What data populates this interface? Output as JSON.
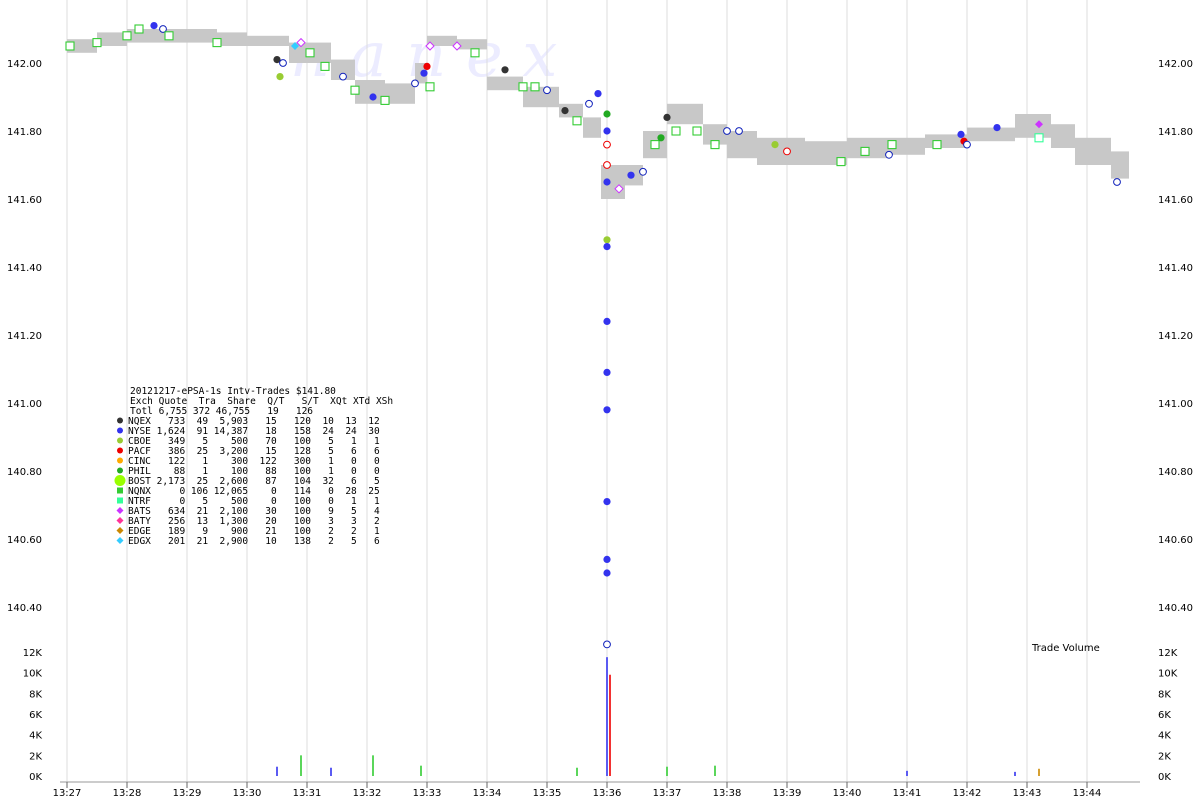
{
  "chart_data": {
    "type": "scatter",
    "title": "20121217-ePSA-1s Intv-Trades $141.80",
    "watermark": "n a n e x",
    "x_time_labels": [
      "13:27",
      "13:28",
      "13:29",
      "13:30",
      "13:31",
      "13:32",
      "13:33",
      "13:34",
      "13:35",
      "13:36",
      "13:37",
      "13:38",
      "13:39",
      "13:40",
      "13:41",
      "13:42",
      "13:43",
      "13:44"
    ],
    "price_axis": {
      "ticks": [
        "142.00",
        "141.80",
        "141.60",
        "141.40",
        "141.20",
        "141.00",
        "140.80",
        "140.60",
        "140.40"
      ],
      "range": [
        140.3,
        142.13
      ]
    },
    "volume_axis": {
      "label": "Trade Volume",
      "ticks": [
        "12K",
        "10K",
        "8K",
        "6K",
        "4K",
        "2K",
        "0K"
      ],
      "range": [
        0,
        12000
      ]
    },
    "colors": {
      "NQEX": "#333333",
      "NYSE": "#3333ee",
      "CBOE": "#99cc33",
      "PACF": "#ee0000",
      "CINC": "#ffaa00",
      "PHIL": "#22aa22",
      "BOST": "#99ff00",
      "NQNX": "#33cc33",
      "NTRF": "#33ff99",
      "BATS": "#cc33ff",
      "BATY": "#ff3399",
      "EDGE": "#cc8800",
      "EDGX": "#33ccff",
      "band": "#c8c8c8",
      "open_blue": "#1122bb",
      "grid": "#dddddd"
    },
    "nbbo_band": [
      {
        "t": 0,
        "lo": 142.03,
        "hi": 142.07
      },
      {
        "t": 0.5,
        "lo": 142.05,
        "hi": 142.09
      },
      {
        "t": 1.0,
        "lo": 142.06,
        "hi": 142.1
      },
      {
        "t": 1.5,
        "lo": 142.06,
        "hi": 142.1
      },
      {
        "t": 2.0,
        "lo": 142.06,
        "hi": 142.1
      },
      {
        "t": 2.5,
        "lo": 142.05,
        "hi": 142.09
      },
      {
        "t": 3.0,
        "lo": 142.05,
        "hi": 142.08
      },
      {
        "t": 3.7,
        "lo": 142.0,
        "hi": 142.06
      },
      {
        "t": 4.0,
        "lo": 142.0,
        "hi": 142.06
      },
      {
        "t": 4.4,
        "lo": 141.95,
        "hi": 142.01
      },
      {
        "t": 4.8,
        "lo": 141.88,
        "hi": 141.95
      },
      {
        "t": 5.3,
        "lo": 141.88,
        "hi": 141.94
      },
      {
        "t": 5.8,
        "lo": 141.94,
        "hi": 142.0
      },
      {
        "t": 6.0,
        "lo": 142.05,
        "hi": 142.08
      },
      {
        "t": 6.5,
        "lo": 142.04,
        "hi": 142.07
      },
      {
        "t": 7.0,
        "lo": 141.92,
        "hi": 141.96
      },
      {
        "t": 7.6,
        "lo": 141.87,
        "hi": 141.93
      },
      {
        "t": 8.2,
        "lo": 141.84,
        "hi": 141.88
      },
      {
        "t": 8.6,
        "lo": 141.78,
        "hi": 141.84
      },
      {
        "t": 8.9,
        "lo": 141.6,
        "hi": 141.7
      },
      {
        "t": 9.3,
        "lo": 141.64,
        "hi": 141.7
      },
      {
        "t": 9.6,
        "lo": 141.72,
        "hi": 141.8
      },
      {
        "t": 10.0,
        "lo": 141.82,
        "hi": 141.88
      },
      {
        "t": 10.6,
        "lo": 141.76,
        "hi": 141.82
      },
      {
        "t": 11.0,
        "lo": 141.72,
        "hi": 141.8
      },
      {
        "t": 11.5,
        "lo": 141.7,
        "hi": 141.78
      },
      {
        "t": 12.3,
        "lo": 141.7,
        "hi": 141.77
      },
      {
        "t": 13.0,
        "lo": 141.72,
        "hi": 141.78
      },
      {
        "t": 13.7,
        "lo": 141.73,
        "hi": 141.78
      },
      {
        "t": 14.3,
        "lo": 141.75,
        "hi": 141.79
      },
      {
        "t": 15.0,
        "lo": 141.77,
        "hi": 141.81
      },
      {
        "t": 15.8,
        "lo": 141.78,
        "hi": 141.85
      },
      {
        "t": 16.4,
        "lo": 141.75,
        "hi": 141.82
      },
      {
        "t": 16.8,
        "lo": 141.7,
        "hi": 141.78
      },
      {
        "t": 17.4,
        "lo": 141.66,
        "hi": 141.74
      },
      {
        "t": 17.7,
        "lo": 141.66,
        "hi": 141.73
      }
    ],
    "trades": [
      {
        "t": 0.05,
        "price": 142.05,
        "ex": "NQNX",
        "shape": "osq"
      },
      {
        "t": 0.5,
        "price": 142.06,
        "ex": "NQNX",
        "shape": "osq"
      },
      {
        "t": 1.0,
        "price": 142.08,
        "ex": "NQNX",
        "shape": "osq"
      },
      {
        "t": 1.2,
        "price": 142.1,
        "ex": "NQNX",
        "shape": "osq"
      },
      {
        "t": 1.45,
        "price": 142.11,
        "ex": "NYSE",
        "shape": "dot"
      },
      {
        "t": 1.6,
        "price": 142.1,
        "ex": "NYSE",
        "shape": "odot"
      },
      {
        "t": 1.7,
        "price": 142.08,
        "ex": "NQNX",
        "shape": "osq"
      },
      {
        "t": 2.5,
        "price": 142.06,
        "ex": "NQNX",
        "shape": "osq"
      },
      {
        "t": 3.5,
        "price": 142.01,
        "ex": "NQEX",
        "shape": "dot"
      },
      {
        "t": 3.55,
        "price": 141.96,
        "ex": "CBOE",
        "shape": "dot"
      },
      {
        "t": 3.6,
        "price": 142.0,
        "ex": "NYSE",
        "shape": "odot"
      },
      {
        "t": 3.8,
        "price": 142.05,
        "ex": "EDGX",
        "shape": "dia"
      },
      {
        "t": 3.9,
        "price": 142.06,
        "ex": "BATS",
        "shape": "odia"
      },
      {
        "t": 4.05,
        "price": 142.03,
        "ex": "NQNX",
        "shape": "osq"
      },
      {
        "t": 4.3,
        "price": 141.99,
        "ex": "NQNX",
        "shape": "osq"
      },
      {
        "t": 4.6,
        "price": 141.96,
        "ex": "NYSE",
        "shape": "odot"
      },
      {
        "t": 4.8,
        "price": 141.92,
        "ex": "NQNX",
        "shape": "osq"
      },
      {
        "t": 5.1,
        "price": 141.9,
        "ex": "NYSE",
        "shape": "dot"
      },
      {
        "t": 5.3,
        "price": 141.89,
        "ex": "NQNX",
        "shape": "osq"
      },
      {
        "t": 5.8,
        "price": 141.94,
        "ex": "NYSE",
        "shape": "odot"
      },
      {
        "t": 5.95,
        "price": 141.97,
        "ex": "NYSE",
        "shape": "dot"
      },
      {
        "t": 6.0,
        "price": 141.99,
        "ex": "PACF",
        "shape": "dot"
      },
      {
        "t": 6.05,
        "price": 142.05,
        "ex": "BATS",
        "shape": "odia"
      },
      {
        "t": 6.05,
        "price": 141.93,
        "ex": "NQNX",
        "shape": "osq"
      },
      {
        "t": 6.5,
        "price": 142.05,
        "ex": "BATS",
        "shape": "odia"
      },
      {
        "t": 6.8,
        "price": 142.03,
        "ex": "NQNX",
        "shape": "osq"
      },
      {
        "t": 7.3,
        "price": 141.98,
        "ex": "NQEX",
        "shape": "dot"
      },
      {
        "t": 7.6,
        "price": 141.93,
        "ex": "NQNX",
        "shape": "osq"
      },
      {
        "t": 7.8,
        "price": 141.93,
        "ex": "NQNX",
        "shape": "osq"
      },
      {
        "t": 8.0,
        "price": 141.92,
        "ex": "NYSE",
        "shape": "odot"
      },
      {
        "t": 8.3,
        "price": 141.86,
        "ex": "NQEX",
        "shape": "dot"
      },
      {
        "t": 8.5,
        "price": 141.83,
        "ex": "NQNX",
        "shape": "osq"
      },
      {
        "t": 8.7,
        "price": 141.88,
        "ex": "NYSE",
        "shape": "odot"
      },
      {
        "t": 8.85,
        "price": 141.91,
        "ex": "NYSE",
        "shape": "dot"
      },
      {
        "t": 9.0,
        "price": 141.85,
        "ex": "PHIL",
        "shape": "dot"
      },
      {
        "t": 9.0,
        "price": 141.8,
        "ex": "NYSE",
        "shape": "dot"
      },
      {
        "t": 9.0,
        "price": 141.76,
        "ex": "PACF",
        "shape": "odot"
      },
      {
        "t": 9.0,
        "price": 141.7,
        "ex": "PACF",
        "shape": "odot"
      },
      {
        "t": 9.0,
        "price": 141.65,
        "ex": "NYSE",
        "shape": "dot"
      },
      {
        "t": 9.0,
        "price": 141.48,
        "ex": "CBOE",
        "shape": "dot"
      },
      {
        "t": 9.0,
        "price": 141.46,
        "ex": "NYSE",
        "shape": "dot"
      },
      {
        "t": 9.0,
        "price": 141.24,
        "ex": "NYSE",
        "shape": "dot"
      },
      {
        "t": 9.0,
        "price": 141.09,
        "ex": "NYSE",
        "shape": "dot"
      },
      {
        "t": 9.0,
        "price": 140.98,
        "ex": "NYSE",
        "shape": "dot"
      },
      {
        "t": 9.0,
        "price": 140.71,
        "ex": "NYSE",
        "shape": "dot"
      },
      {
        "t": 9.0,
        "price": 140.54,
        "ex": "NYSE",
        "shape": "dot"
      },
      {
        "t": 9.0,
        "price": 140.5,
        "ex": "NYSE",
        "shape": "dot"
      },
      {
        "t": 9.0,
        "price": 140.29,
        "ex": "NYSE",
        "shape": "odot"
      },
      {
        "t": 9.2,
        "price": 141.63,
        "ex": "BATS",
        "shape": "odia"
      },
      {
        "t": 9.4,
        "price": 141.67,
        "ex": "NYSE",
        "shape": "dot"
      },
      {
        "t": 9.6,
        "price": 141.68,
        "ex": "NYSE",
        "shape": "odot"
      },
      {
        "t": 9.8,
        "price": 141.76,
        "ex": "NQNX",
        "shape": "osq"
      },
      {
        "t": 9.9,
        "price": 141.78,
        "ex": "PHIL",
        "shape": "dot"
      },
      {
        "t": 10.0,
        "price": 141.84,
        "ex": "NQEX",
        "shape": "dot"
      },
      {
        "t": 10.15,
        "price": 141.8,
        "ex": "NQNX",
        "shape": "osq"
      },
      {
        "t": 10.5,
        "price": 141.8,
        "ex": "NQNX",
        "shape": "osq"
      },
      {
        "t": 10.8,
        "price": 141.76,
        "ex": "NQNX",
        "shape": "osq"
      },
      {
        "t": 11.0,
        "price": 141.8,
        "ex": "NYSE",
        "shape": "odot"
      },
      {
        "t": 11.2,
        "price": 141.8,
        "ex": "NYSE",
        "shape": "odot"
      },
      {
        "t": 11.8,
        "price": 141.76,
        "ex": "CBOE",
        "shape": "dot"
      },
      {
        "t": 12.0,
        "price": 141.74,
        "ex": "PACF",
        "shape": "odot"
      },
      {
        "t": 12.9,
        "price": 141.71,
        "ex": "NQNX",
        "shape": "osq"
      },
      {
        "t": 13.3,
        "price": 141.74,
        "ex": "NQNX",
        "shape": "osq"
      },
      {
        "t": 13.7,
        "price": 141.73,
        "ex": "NYSE",
        "shape": "odot"
      },
      {
        "t": 13.75,
        "price": 141.76,
        "ex": "NQNX",
        "shape": "osq"
      },
      {
        "t": 14.5,
        "price": 141.76,
        "ex": "NQNX",
        "shape": "osq"
      },
      {
        "t": 14.9,
        "price": 141.79,
        "ex": "NYSE",
        "shape": "dot"
      },
      {
        "t": 14.95,
        "price": 141.77,
        "ex": "PACF",
        "shape": "dot"
      },
      {
        "t": 15.0,
        "price": 141.76,
        "ex": "NYSE",
        "shape": "odot"
      },
      {
        "t": 15.5,
        "price": 141.81,
        "ex": "NYSE",
        "shape": "dot"
      },
      {
        "t": 16.2,
        "price": 141.82,
        "ex": "BATS",
        "shape": "dia"
      },
      {
        "t": 16.2,
        "price": 141.78,
        "ex": "NTRF",
        "shape": "osq"
      },
      {
        "t": 17.5,
        "price": 141.65,
        "ex": "NYSE",
        "shape": "odot"
      }
    ],
    "volume_bars": [
      {
        "t": 3.5,
        "v": 900,
        "ex": "NYSE"
      },
      {
        "t": 3.9,
        "v": 2000,
        "ex": "NQNX"
      },
      {
        "t": 4.4,
        "v": 800,
        "ex": "NYSE"
      },
      {
        "t": 5.1,
        "v": 2000,
        "ex": "NQNX"
      },
      {
        "t": 5.9,
        "v": 1000,
        "ex": "NQNX"
      },
      {
        "t": 8.5,
        "v": 800,
        "ex": "NQNX"
      },
      {
        "t": 9.0,
        "v": 11500,
        "ex": "NYSE"
      },
      {
        "t": 9.05,
        "v": 9800,
        "ex": "PACF"
      },
      {
        "t": 10.0,
        "v": 900,
        "ex": "NQNX"
      },
      {
        "t": 10.8,
        "v": 1000,
        "ex": "NQNX"
      },
      {
        "t": 14.0,
        "v": 500,
        "ex": "NYSE"
      },
      {
        "t": 15.8,
        "v": 400,
        "ex": "NYSE"
      },
      {
        "t": 16.2,
        "v": 700,
        "ex": "EDGE"
      }
    ]
  },
  "legend": {
    "title": "20121217-ePSA-1s Intv-Trades $141.80",
    "header": "Exch Quote  Tra  Share  Q/T   S/T  XQt XTd XSh",
    "total": "Totl 6,755 372 46,755   19   126",
    "rows": [
      {
        "text": "NQEX   733  49  5,903   15   120  10  13  12",
        "color": "#333333",
        "shape": "dot"
      },
      {
        "text": "NYSE 1,624  91 14,387   18   158  24  24  30",
        "color": "#3333ee",
        "shape": "dot"
      },
      {
        "text": "CBOE   349   5    500   70   100   5   1   1",
        "color": "#99cc33",
        "shape": "dot"
      },
      {
        "text": "PACF   386  25  3,200   15   128   5   6   6",
        "color": "#ee0000",
        "shape": "dot"
      },
      {
        "text": "CINC   122   1    300  122   300   1   0   0",
        "color": "#ffaa00",
        "shape": "dot"
      },
      {
        "text": "PHIL    88   1    100   88   100   1   0   0",
        "color": "#22aa22",
        "shape": "dot"
      },
      {
        "text": "BOST 2,173  25  2,600   87   104  32   6   5",
        "color": "#99ff00",
        "shape": "bigdot"
      },
      {
        "text": "NQNX     0 106 12,065    0   114   0  28  25",
        "color": "#33cc33",
        "shape": "sq"
      },
      {
        "text": "NTRF     0   5    500    0   100   0   1   1",
        "color": "#33ff99",
        "shape": "sq"
      },
      {
        "text": "BATS   634  21  2,100   30   100   9   5   4",
        "color": "#cc33ff",
        "shape": "dia"
      },
      {
        "text": "BATY   256  13  1,300   20   100   3   3   2",
        "color": "#ff3399",
        "shape": "dia"
      },
      {
        "text": "EDGE   189   9    900   21   100   2   2   1",
        "color": "#cc8800",
        "shape": "dia"
      },
      {
        "text": "EDGX   201  21  2,900   10   138   2   5   6",
        "color": "#33ccff",
        "shape": "dia"
      }
    ]
  }
}
